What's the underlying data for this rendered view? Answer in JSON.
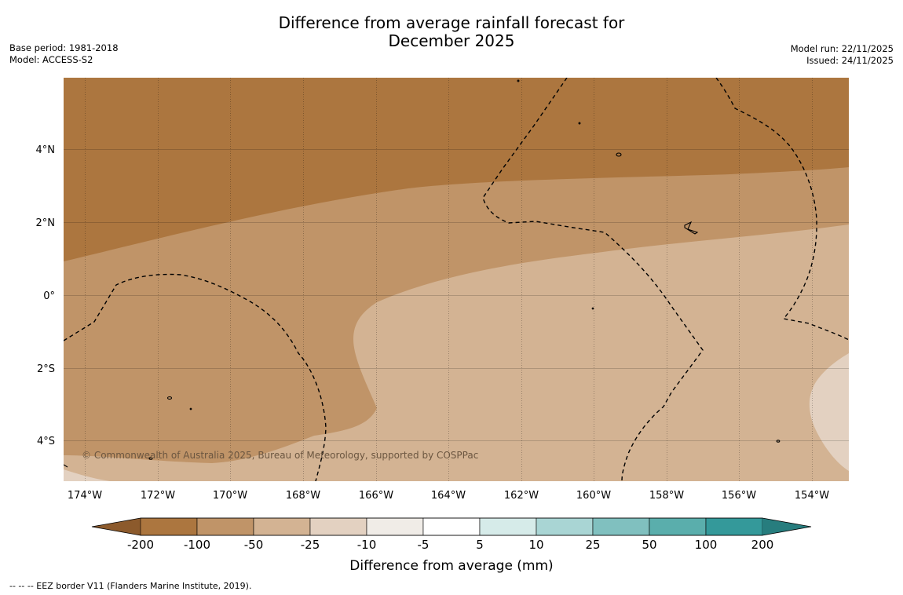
{
  "title": {
    "line1": "Difference from average rainfall forecast for",
    "line2": "December 2025"
  },
  "meta_left": {
    "base_period": "Base period: 1981-2018",
    "model": "Model: ACCESS-S2"
  },
  "meta_right": {
    "model_run": "Model run: 22/11/2025",
    "issued": "Issued: 24/11/2025"
  },
  "map": {
    "lat_labels": [
      "4°N",
      "2°N",
      "0°",
      "2°S",
      "4°S"
    ],
    "lon_labels": [
      "174°W",
      "172°W",
      "170°W",
      "168°W",
      "166°W",
      "164°W",
      "162°W",
      "160°W",
      "158°W",
      "156°W",
      "154°W"
    ],
    "copyright": "© Commonwealth of Australia 2025, Bureau of Meteorology, supported by COSPPac"
  },
  "legend": {
    "tick_labels": [
      "-200",
      "-100",
      "-50",
      "-25",
      "-10",
      "-5",
      "5",
      "10",
      "25",
      "50",
      "100",
      "200"
    ],
    "label": "Difference from average (mm)",
    "colors": [
      "#8c5a2c",
      "#ac763f",
      "#c09468",
      "#d3b393",
      "#e3d1c1",
      "#f0ece7",
      "#ffffff",
      "#d6ebe9",
      "#a9d5d4",
      "#80c0bf",
      "#5aaeac",
      "#34999a",
      "#277d7e"
    ]
  },
  "footnote": "-- -- -- EEZ border V11 (Flanders Marine Institute, 2019)."
}
